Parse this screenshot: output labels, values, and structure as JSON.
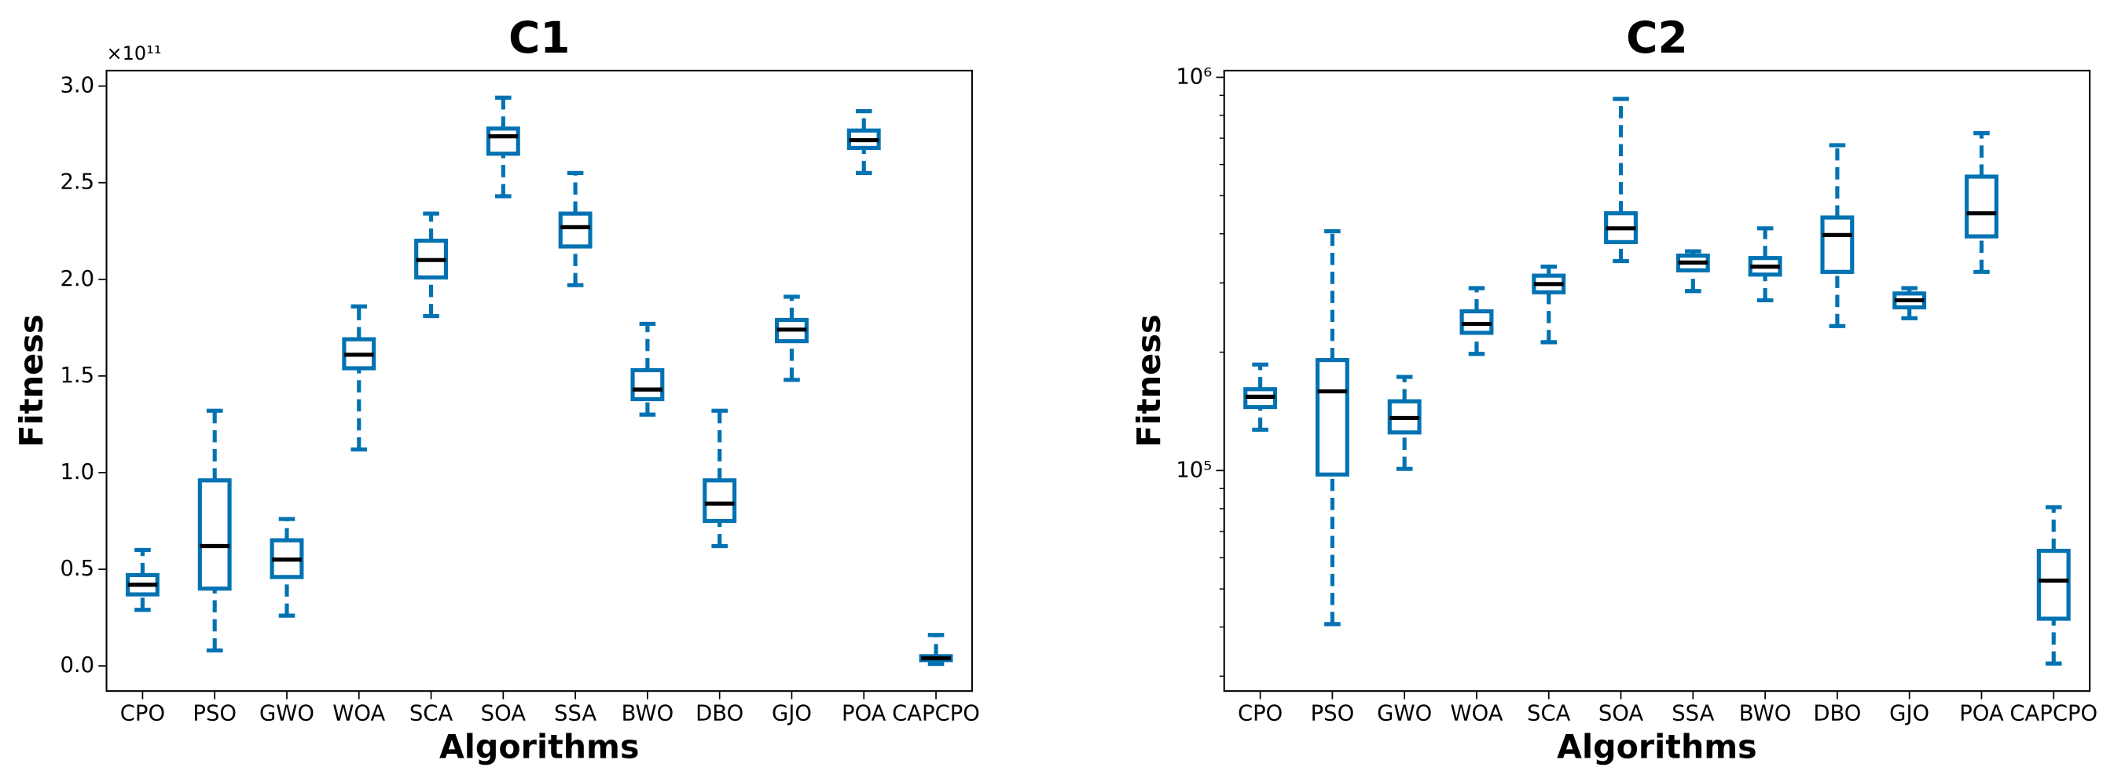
{
  "chart_data": [
    {
      "type": "box",
      "title": "C1",
      "xlabel": "Algorithms",
      "ylabel": "Fitness",
      "offset_text": "×10¹¹",
      "categories": [
        "CPO",
        "PSO",
        "GWO",
        "WOA",
        "SCA",
        "SOA",
        "SSA",
        "BWO",
        "DBO",
        "GJO",
        "POA",
        "CAPCPO"
      ],
      "min": [
        0.29,
        0.08,
        0.26,
        1.12,
        1.81,
        2.43,
        1.97,
        1.3,
        0.62,
        1.48,
        2.55,
        0.01
      ],
      "q1": [
        0.37,
        0.4,
        0.46,
        1.54,
        2.01,
        2.65,
        2.17,
        1.38,
        0.75,
        1.68,
        2.68,
        0.03
      ],
      "median": [
        0.42,
        0.62,
        0.55,
        1.61,
        2.1,
        2.74,
        2.27,
        1.43,
        0.84,
        1.74,
        2.72,
        0.04
      ],
      "q3": [
        0.47,
        0.96,
        0.65,
        1.69,
        2.2,
        2.78,
        2.34,
        1.53,
        0.96,
        1.79,
        2.77,
        0.05
      ],
      "max": [
        0.6,
        1.32,
        0.76,
        1.86,
        2.34,
        2.94,
        2.55,
        1.77,
        1.32,
        1.91,
        2.87,
        0.16
      ],
      "color": "#0072b2",
      "median_color": "#000000",
      "yscale": "linear",
      "ylim": [
        -0.13,
        3.08
      ],
      "yticks": [
        {
          "value": 0,
          "label": "0.0"
        },
        {
          "value": 0.5,
          "label": "0.5"
        },
        {
          "value": 1,
          "label": "1.0"
        },
        {
          "value": 1.5,
          "label": "1.5"
        },
        {
          "value": 2,
          "label": "2.0"
        },
        {
          "value": 2.5,
          "label": "2.5"
        },
        {
          "value": 3,
          "label": "3.0"
        }
      ]
    },
    {
      "type": "box",
      "title": "C2",
      "xlabel": "Algorithms",
      "ylabel": "Fitness",
      "categories": [
        "CPO",
        "PSO",
        "GWO",
        "WOA",
        "SCA",
        "SOA",
        "SSA",
        "BWO",
        "DBO",
        "GJO",
        "POA",
        "CAPCPO"
      ],
      "min": [
        127000,
        40700,
        101000,
        198000,
        212000,
        341000,
        286000,
        271000,
        233000,
        244000,
        320000,
        32300
      ],
      "q1": [
        145000,
        97700,
        125000,
        224000,
        284000,
        381000,
        323000,
        315000,
        320000,
        260000,
        394000,
        42000
      ],
      "median": [
        154000,
        159000,
        136000,
        236000,
        298000,
        413000,
        338000,
        330000,
        397000,
        271000,
        451000,
        52500
      ],
      "q3": [
        161000,
        191000,
        150000,
        254000,
        313000,
        451000,
        352000,
        347000,
        440000,
        282000,
        559000,
        62500
      ],
      "max": [
        186000,
        406000,
        173000,
        291000,
        330000,
        881000,
        361000,
        413000,
        672000,
        291000,
        721000,
        80700
      ],
      "color": "#0072b2",
      "median_color": "#000000",
      "yscale": "log",
      "ylim": [
        27500,
        1040000
      ],
      "yticks": [
        {
          "value": 100000,
          "label": "10⁵"
        },
        {
          "value": 1000000,
          "label": "10⁶"
        }
      ],
      "yminorticks": [
        30000,
        40000,
        50000,
        60000,
        70000,
        80000,
        90000,
        200000,
        300000,
        400000,
        500000,
        600000,
        700000,
        800000,
        900000
      ]
    }
  ]
}
